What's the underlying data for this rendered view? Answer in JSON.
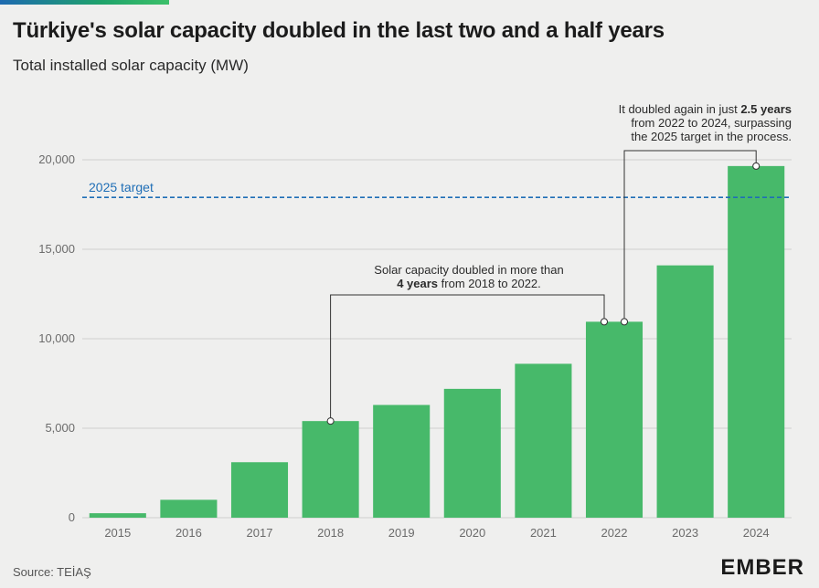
{
  "title": "Türkiye's solar capacity doubled in the last two and a half years",
  "subtitle": "Total installed solar capacity (MW)",
  "source": "Source: TEİAŞ",
  "logo": "EMBER",
  "colors": {
    "bar": "#47b96a",
    "target": "#1f6eb6",
    "grid": "#cfcfcf",
    "background": "#efefee"
  },
  "chart_data": {
    "type": "bar",
    "categories": [
      "2015",
      "2016",
      "2017",
      "2018",
      "2019",
      "2020",
      "2021",
      "2022",
      "2023",
      "2024"
    ],
    "values": [
      250,
      1000,
      3100,
      5400,
      6300,
      7200,
      8600,
      10950,
      14100,
      19650
    ],
    "ylim": [
      0,
      20000
    ],
    "yticks": [
      0,
      5000,
      10000,
      15000,
      20000
    ],
    "ytick_labels": [
      "0",
      "5,000",
      "10,000",
      "15,000",
      "20,000"
    ],
    "grid": true,
    "reference_line": {
      "label": "2025 target",
      "value": 17900
    },
    "annotations": [
      {
        "lines": [
          [
            {
              "text": "Solar capacity doubled in more than",
              "bold": false
            }
          ],
          [
            {
              "text": "4 years",
              "bold": true
            },
            {
              "text": " from 2018 to 2022.",
              "bold": false
            }
          ]
        ],
        "from_category": "2018",
        "to_category": "2022"
      },
      {
        "lines": [
          [
            {
              "text": "It doubled again in just ",
              "bold": false
            },
            {
              "text": "2.5 years",
              "bold": true
            }
          ],
          [
            {
              "text": "from 2022 to 2024, surpassing",
              "bold": false
            }
          ],
          [
            {
              "text": "the 2025 target in the process.",
              "bold": false
            }
          ]
        ],
        "from_category": "2022",
        "to_category": "2024"
      }
    ]
  }
}
